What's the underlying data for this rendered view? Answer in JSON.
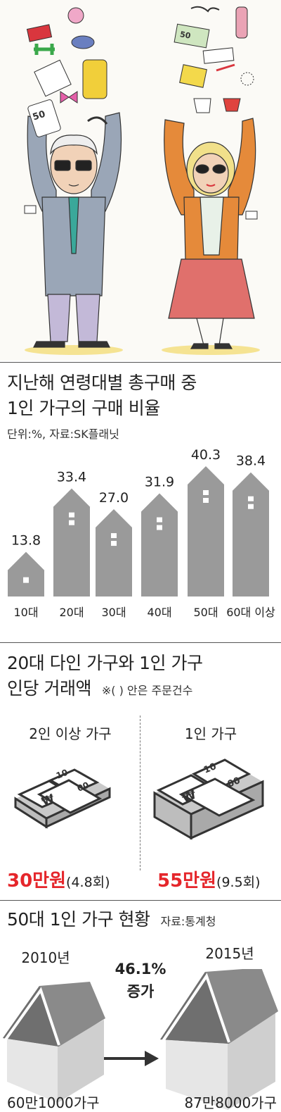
{
  "chart1": {
    "title_line1": "지난해 연령대별 총구매 중",
    "title_line2": "1인 가구의 구매 비율",
    "subtitle": "단위:%, 자료:SK플래닛",
    "chart_data": {
      "type": "bar",
      "categories": [
        "10대",
        "20대",
        "30대",
        "40대",
        "50대",
        "60대 이상"
      ],
      "values": [
        13.8,
        33.4,
        27.0,
        31.9,
        40.3,
        38.4
      ],
      "value_labels": [
        "13.8",
        "33.4",
        "27.0",
        "31.9",
        "40.3",
        "38.4"
      ],
      "title": "지난해 연령대별 총구매 중 1인 가구의 구매 비율",
      "unit": "%",
      "source": "SK플래닛",
      "bar_color": "#9a9a9a"
    }
  },
  "chart2": {
    "title_line1": "20대 다인 가구와 1인 가구",
    "title_line2": "인당 거래액",
    "note": "※( ) 안은 주문건수",
    "left": {
      "label": "2인 이상 가구",
      "amount": "30만원",
      "orders": "(4.8회)"
    },
    "right": {
      "label": "1인 가구",
      "amount": "55만원",
      "orders": "(9.5회)"
    },
    "bill_texts": [
      "10",
      "00",
      "₩"
    ],
    "accent_color": "#e5262b"
  },
  "chart3": {
    "title": "50대 1인 가구 현황",
    "source": "자료:통계청",
    "from": {
      "year": "2010년",
      "count": "60만1000가구"
    },
    "to": {
      "year": "2015년",
      "count": "87만8000가구"
    },
    "change_line1": "46.1%",
    "change_line2": "증가"
  },
  "illustration": {
    "left_props": {
      "tag": "50",
      "icons": [
        "fork-icon",
        "gift-box-icon",
        "cupcake-icon",
        "dumbbell-icon",
        "hat-icon",
        "camera-icon",
        "suitcase-icon",
        "bow-tie-icon",
        "calculator-icon",
        "headphones-icon",
        "credit-card-icon"
      ]
    },
    "right_props": {
      "tag": "50",
      "icons": [
        "glasses-icon",
        "bottle-icon",
        "laptop-icon",
        "book-icon",
        "notepad-icon",
        "pen-icon",
        "necklace-icon",
        "shoes-icon",
        "teacup-icon",
        "credit-card-icon",
        "receipt-icon"
      ]
    },
    "colors": {
      "man_suit": "#9aa6b7",
      "woman_jacket": "#e58a3a",
      "woman_skirt": "#e0706c",
      "suitcase": "#f1cf3a"
    }
  }
}
